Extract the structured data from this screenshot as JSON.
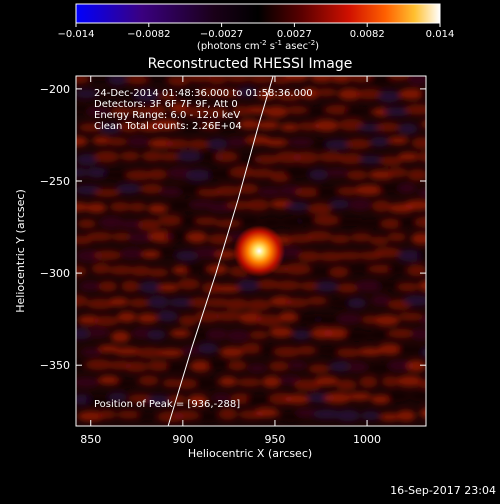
{
  "chart_data": {
    "type": "heatmap",
    "title": "Reconstructed RHESSI Image",
    "xlabel": "Heliocentric X (arcsec)",
    "ylabel": "Heliocentric Y (arcsec)",
    "xlim": [
      842,
      1032
    ],
    "ylim": [
      -383,
      -193
    ],
    "x_ticks": [
      850,
      900,
      950,
      1000
    ],
    "y_ticks": [
      -200,
      -250,
      -300,
      -350
    ],
    "colorbar": {
      "range": [
        -0.014,
        0.014
      ],
      "ticks": [
        "-0.014",
        "-0.0082",
        "-0.0027",
        "0.0027",
        "0.0082",
        "0.014"
      ],
      "unit_base": "(photons cm",
      "unit_sup1": "-2",
      "unit_mid1": " s",
      "unit_sup2": "-1",
      "unit_mid2": " asec",
      "unit_sup3": "-2",
      "unit_end": ")"
    },
    "annotations": {
      "time_range": "24-Dec-2014 01:48:36.000 to 01:58:36.000",
      "detectors": "Detectors: 3F 6F 7F 9F, Att 0",
      "energy": "Energy Range: 6.0 - 12.0 keV",
      "clean": "Clean    Total counts: 2.26E+04",
      "peak": "Position of Peak = [936,-288]"
    },
    "peak": {
      "x": 936,
      "y": -288,
      "value": 0.014
    },
    "limb_points": [
      [
        892,
        -383
      ],
      [
        905,
        -340
      ],
      [
        918,
        -300
      ],
      [
        930,
        -260
      ],
      [
        941,
        -220
      ],
      [
        949,
        -193
      ]
    ]
  },
  "footer": {
    "timestamp": "16-Sep-2017 23:04"
  },
  "colors": {
    "background": "#000000",
    "foreground": "#ffffff",
    "colormap": [
      "#0000ff",
      "#3a0080",
      "#1a0020",
      "#000000",
      "#5a0000",
      "#d01000",
      "#ff6000",
      "#ffc030",
      "#ffffff"
    ]
  }
}
